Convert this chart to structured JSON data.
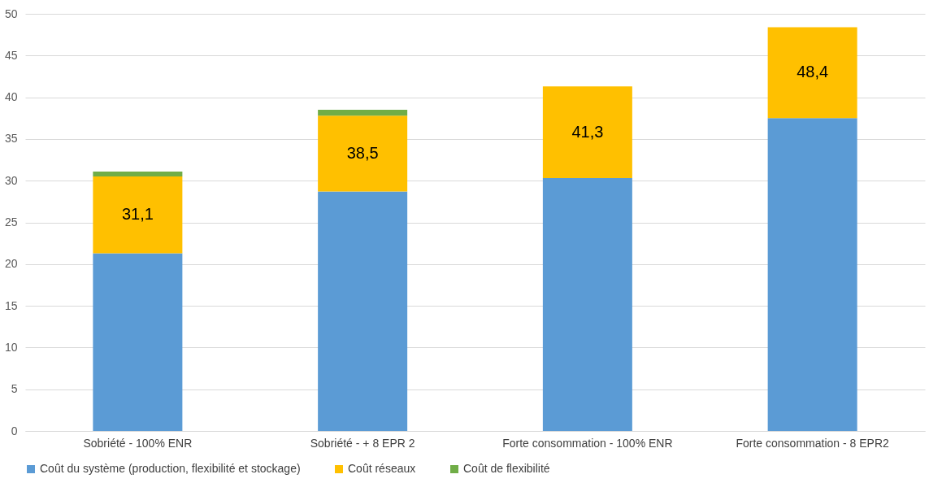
{
  "chart_data": {
    "type": "bar",
    "stacked": true,
    "categories": [
      "Sobriété - 100% ENR",
      "Sobriété - + 8 EPR 2",
      "Forte consommation - 100% ENR",
      "Forte consommation - 8 EPR2"
    ],
    "series": [
      {
        "name": "Coût du système (production, flexibilité et stockage)",
        "color": "#5b9bd5",
        "values": [
          21.3,
          28.7,
          30.3,
          37.5
        ]
      },
      {
        "name": "Coût réseaux",
        "color": "#ffc000",
        "values": [
          9.2,
          9.1,
          11.0,
          10.9
        ]
      },
      {
        "name": "Coût de flexibilité",
        "color": "#70ad47",
        "values": [
          0.6,
          0.7,
          0,
          0
        ]
      }
    ],
    "totals": [
      "31,1",
      "38,5",
      "41,3",
      "48,4"
    ],
    "ylim": [
      0,
      50
    ],
    "yticks": [
      0,
      5,
      10,
      15,
      20,
      25,
      30,
      35,
      40,
      45,
      50
    ],
    "grid": "y",
    "legend": "bottom"
  }
}
